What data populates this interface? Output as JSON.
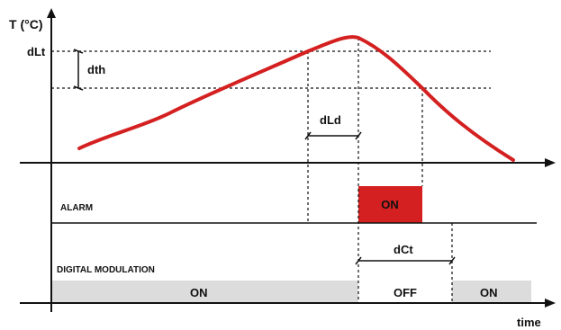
{
  "axes": {
    "y_label": "T (°C)",
    "x_label": "time"
  },
  "thresholds": {
    "upper_label": "dLt",
    "hysteresis_label": "dth"
  },
  "intervals": {
    "delay_label": "dLd",
    "cycle_label": "dCt"
  },
  "alarm": {
    "row_label": "ALARM",
    "state_on": "ON"
  },
  "digital_modulation": {
    "row_label": "DIGITAL MODULATION",
    "segments": [
      "ON",
      "OFF",
      "ON"
    ]
  },
  "colors": {
    "curve": "#d42020",
    "alarm_on_fill": "#d42020",
    "modulation_on_fill": "#dcdcdc",
    "axis": "#111111"
  }
}
